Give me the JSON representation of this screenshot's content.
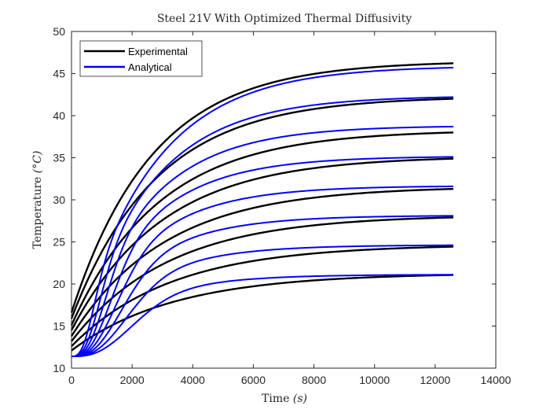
{
  "chart_data": {
    "type": "line",
    "title": "Steel 21V With Optimized Thermal Diffusivity",
    "xlabel_text": "Time",
    "xlabel_unit": "(s)",
    "ylabel_text": "Temperature",
    "ylabel_unit": "(°C)",
    "xlim": [
      0,
      14000
    ],
    "ylim": [
      10,
      50
    ],
    "xticks": [
      0,
      2000,
      4000,
      6000,
      8000,
      10000,
      12000,
      14000
    ],
    "yticks": [
      10,
      15,
      20,
      25,
      30,
      35,
      40,
      45,
      50
    ],
    "grid": false,
    "legend_position": "top-left",
    "colors": {
      "Experimental": "#000000",
      "Analytical": "#0000ff"
    },
    "series": [
      {
        "name": "Experimental",
        "curves": [
          {
            "start": 16.6,
            "final": 46.5,
            "tau": 2700,
            "ramp": 0
          },
          {
            "start": 15.9,
            "final": 42.3,
            "tau": 2800,
            "ramp": 0
          },
          {
            "start": 15.1,
            "final": 38.3,
            "tau": 2900,
            "ramp": 0
          },
          {
            "start": 14.5,
            "final": 35.2,
            "tau": 3000,
            "ramp": 0
          },
          {
            "start": 13.8,
            "final": 31.6,
            "tau": 3100,
            "ramp": 0
          },
          {
            "start": 13.2,
            "final": 28.2,
            "tau": 3200,
            "ramp": 0
          },
          {
            "start": 12.6,
            "final": 24.7,
            "tau": 3300,
            "ramp": 0
          },
          {
            "start": 12.1,
            "final": 21.3,
            "tau": 3400,
            "ramp": 0
          }
        ]
      },
      {
        "name": "Analytical",
        "curves": [
          {
            "start": 11.4,
            "final": 45.7,
            "tau": 2500,
            "ramp": 700
          },
          {
            "start": 11.4,
            "final": 42.2,
            "tau": 2400,
            "ramp": 900
          },
          {
            "start": 11.4,
            "final": 38.7,
            "tau": 2300,
            "ramp": 1100
          },
          {
            "start": 11.4,
            "final": 35.1,
            "tau": 2250,
            "ramp": 1300
          },
          {
            "start": 11.4,
            "final": 31.6,
            "tau": 2200,
            "ramp": 1500
          },
          {
            "start": 11.4,
            "final": 28.1,
            "tau": 2150,
            "ramp": 1700
          },
          {
            "start": 11.4,
            "final": 24.6,
            "tau": 2100,
            "ramp": 1900
          },
          {
            "start": 11.4,
            "final": 21.1,
            "tau": 2050,
            "ramp": 2100
          }
        ]
      }
    ],
    "x_end": 12600
  }
}
